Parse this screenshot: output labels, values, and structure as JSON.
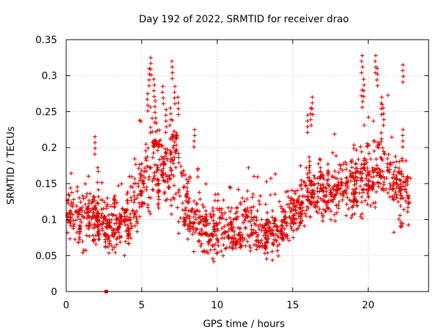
{
  "chart_data": {
    "type": "scatter",
    "title": "Day 192 of 2022, SRMTID for receiver drao",
    "xlabel": "GPS time / hours",
    "ylabel": "SRMTID / TECUs",
    "xlim": [
      0,
      24
    ],
    "ylim": [
      0,
      0.35
    ],
    "xticks": [
      0,
      5,
      10,
      15,
      20
    ],
    "xtick_labels": [
      "0",
      "5",
      "10",
      "15",
      "20"
    ],
    "yticks": [
      0,
      0.05,
      0.1,
      0.15,
      0.2,
      0.25,
      0.3,
      0.35
    ],
    "ytick_labels": [
      "0",
      "0.05",
      "0.1",
      "0.15",
      "0.2",
      "0.25",
      "0.3",
      "0.35"
    ],
    "grid": true,
    "color": "#dd0000",
    "marker": "plus",
    "special_point": {
      "x": 2.65,
      "y": 0.0,
      "marker": "square"
    },
    "envelope": [
      {
        "h": 0.0,
        "lo": 0.085,
        "hi": 0.135
      },
      {
        "h": 1.0,
        "lo": 0.06,
        "hi": 0.13
      },
      {
        "h": 2.0,
        "lo": 0.07,
        "hi": 0.145
      },
      {
        "h": 3.0,
        "lo": 0.05,
        "hi": 0.115
      },
      {
        "h": 4.0,
        "lo": 0.06,
        "hi": 0.14
      },
      {
        "h": 5.0,
        "lo": 0.1,
        "hi": 0.18
      },
      {
        "h": 5.8,
        "lo": 0.12,
        "hi": 0.26
      },
      {
        "h": 6.5,
        "lo": 0.1,
        "hi": 0.22
      },
      {
        "h": 7.2,
        "lo": 0.1,
        "hi": 0.24
      },
      {
        "h": 8.0,
        "lo": 0.07,
        "hi": 0.14
      },
      {
        "h": 9.0,
        "lo": 0.06,
        "hi": 0.115
      },
      {
        "h": 10.0,
        "lo": 0.05,
        "hi": 0.11
      },
      {
        "h": 11.0,
        "lo": 0.06,
        "hi": 0.11
      },
      {
        "h": 12.0,
        "lo": 0.06,
        "hi": 0.12
      },
      {
        "h": 13.0,
        "lo": 0.05,
        "hi": 0.105
      },
      {
        "h": 14.0,
        "lo": 0.05,
        "hi": 0.11
      },
      {
        "h": 15.0,
        "lo": 0.08,
        "hi": 0.13
      },
      {
        "h": 16.0,
        "lo": 0.09,
        "hi": 0.18
      },
      {
        "h": 17.0,
        "lo": 0.1,
        "hi": 0.16
      },
      {
        "h": 18.0,
        "lo": 0.1,
        "hi": 0.175
      },
      {
        "h": 19.0,
        "lo": 0.1,
        "hi": 0.175
      },
      {
        "h": 20.0,
        "lo": 0.11,
        "hi": 0.21
      },
      {
        "h": 21.0,
        "lo": 0.12,
        "hi": 0.23
      },
      {
        "h": 22.0,
        "lo": 0.08,
        "hi": 0.18
      },
      {
        "h": 22.8,
        "lo": 0.1,
        "hi": 0.16
      }
    ],
    "spikes": [
      {
        "x": 5.6,
        "y": 0.325
      },
      {
        "x": 5.5,
        "y": 0.31
      },
      {
        "x": 5.8,
        "y": 0.295
      },
      {
        "x": 6.4,
        "y": 0.285
      },
      {
        "x": 7.0,
        "y": 0.32
      },
      {
        "x": 7.2,
        "y": 0.285
      },
      {
        "x": 7.4,
        "y": 0.27
      },
      {
        "x": 5.9,
        "y": 0.265
      },
      {
        "x": 6.9,
        "y": 0.255
      },
      {
        "x": 5.4,
        "y": 0.275
      },
      {
        "x": 6.6,
        "y": 0.245
      },
      {
        "x": 19.6,
        "y": 0.328
      },
      {
        "x": 20.5,
        "y": 0.328
      },
      {
        "x": 20.6,
        "y": 0.31
      },
      {
        "x": 19.7,
        "y": 0.295
      },
      {
        "x": 22.3,
        "y": 0.315
      },
      {
        "x": 19.6,
        "y": 0.28
      },
      {
        "x": 20.9,
        "y": 0.27
      },
      {
        "x": 16.3,
        "y": 0.27
      },
      {
        "x": 16.2,
        "y": 0.255
      },
      {
        "x": 16.0,
        "y": 0.245
      },
      {
        "x": 21.0,
        "y": 0.255
      },
      {
        "x": 22.3,
        "y": 0.225
      },
      {
        "x": 1.9,
        "y": 0.215
      },
      {
        "x": 8.5,
        "y": 0.225
      }
    ]
  }
}
